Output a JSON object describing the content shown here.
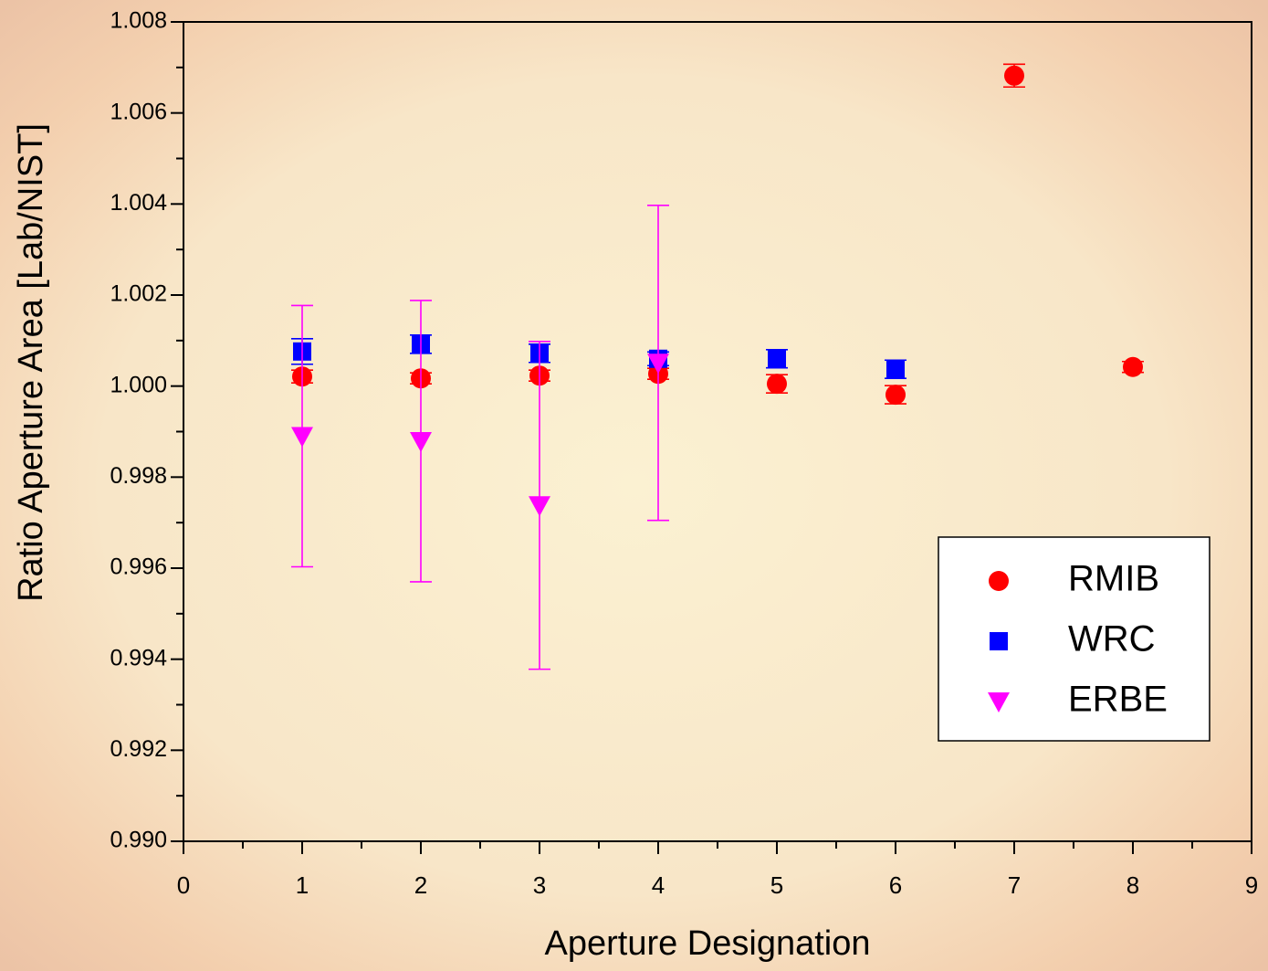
{
  "chart_data": {
    "type": "scatter",
    "x_label": "Aperture Designation",
    "y_label": "Ratio Aperture Area [Lab/NIST]",
    "xlim": [
      0,
      9
    ],
    "xticks": [
      0,
      1,
      2,
      3,
      4,
      5,
      6,
      7,
      8,
      9
    ],
    "ylim": [
      0.99,
      1.008
    ],
    "yticks": [
      {
        "value": 0.99,
        "label": "0.990"
      },
      0.992,
      0.994,
      0.996,
      0.998,
      {
        "value": 1,
        "label": "1.000"
      },
      1.002,
      1.004,
      1.006,
      1.008
    ],
    "legend": "lower right",
    "series": [
      {
        "name": "RMIB",
        "color": "#ff0000",
        "marker": "circle",
        "x": [
          1,
          2,
          3,
          4,
          5,
          6,
          7,
          8
        ],
        "values": [
          1.00021,
          1.00017,
          1.00023,
          1.00027,
          1.00005,
          0.99981,
          1.00682,
          1.00042
        ],
        "errors": [
          0.00014,
          0.00012,
          0.00012,
          0.00012,
          0.0002,
          0.0002,
          0.00025,
          0.00012
        ]
      },
      {
        "name": "WRC",
        "color": "#0000ff",
        "marker": "square",
        "x": [
          1,
          2,
          3,
          4,
          5,
          6
        ],
        "values": [
          1.00076,
          1.00092,
          1.00072,
          1.0006,
          1.0006,
          1.00037
        ],
        "errors": [
          0.00028,
          0.0002,
          0.0002,
          0.00015,
          0.0002,
          0.0002
        ]
      },
      {
        "name": "ERBE",
        "color": "#ff00ff",
        "marker": "triangle-down",
        "x": [
          1,
          2,
          3,
          4
        ],
        "values": [
          0.9989,
          0.99879,
          0.99738,
          1.00051
        ],
        "errors": [
          0.00287,
          0.00309,
          0.0036,
          0.00346
        ]
      }
    ]
  }
}
